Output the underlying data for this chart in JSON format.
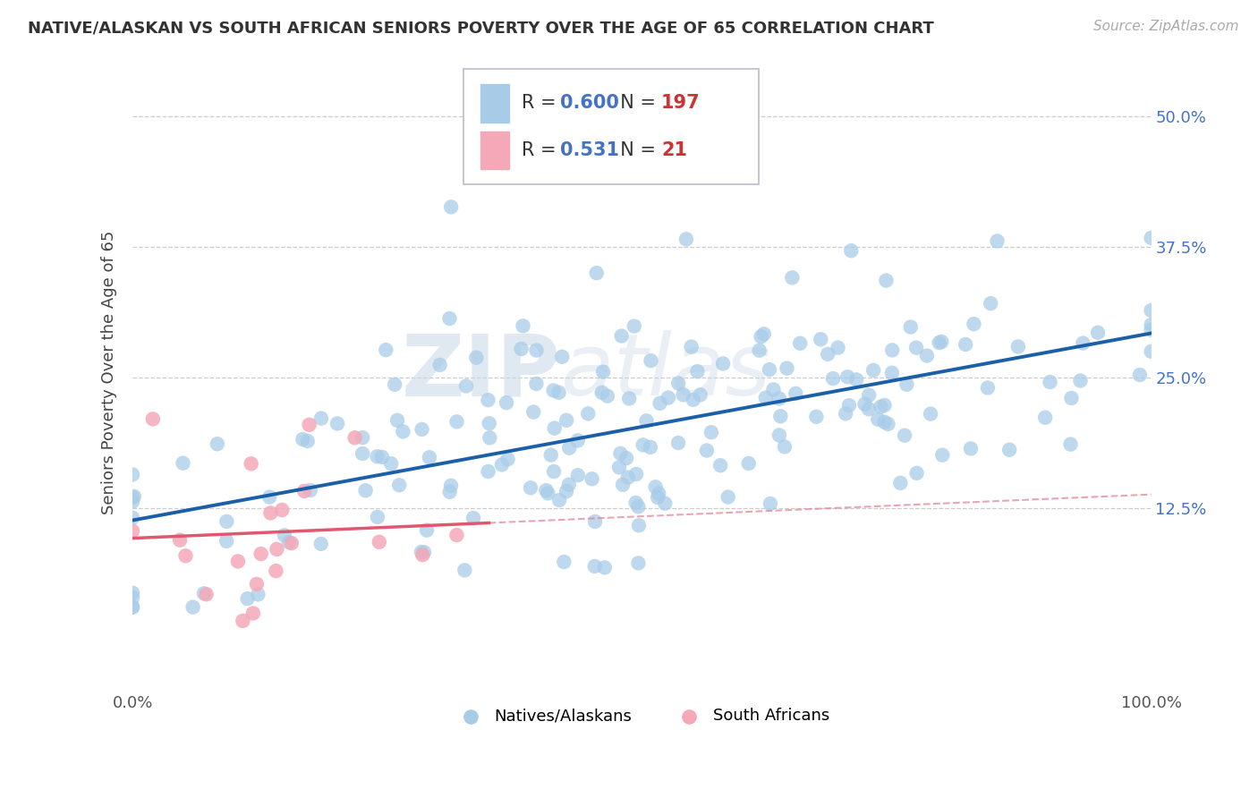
{
  "title": "NATIVE/ALASKAN VS SOUTH AFRICAN SENIORS POVERTY OVER THE AGE OF 65 CORRELATION CHART",
  "source": "Source: ZipAtlas.com",
  "ylabel": "Seniors Poverty Over the Age of 65",
  "xlim": [
    0,
    100
  ],
  "ylim": [
    -5,
    56
  ],
  "ytick_vals": [
    12.5,
    25.0,
    37.5,
    50.0
  ],
  "ytick_labels": [
    "12.5%",
    "25.0%",
    "37.5%",
    "50.0%"
  ],
  "xtick_vals": [
    0,
    100
  ],
  "xtick_labels": [
    "0.0%",
    "100.0%"
  ],
  "blue_color": "#a8cce8",
  "pink_color": "#f4a8b8",
  "blue_line_color": "#1a5fa8",
  "pink_line_color": "#e05870",
  "pink_dash_color": "#e08090",
  "ytick_color": "#4472c4",
  "legend_blue_R": "0.600",
  "legend_blue_N": "197",
  "legend_pink_R": "0.531",
  "legend_pink_N": "21",
  "watermark_zip": "ZIP",
  "watermark_atlas": "atlas",
  "background_color": "#ffffff",
  "blue_N": 197,
  "pink_N": 21,
  "title_fontsize": 13,
  "axis_label_fontsize": 13,
  "tick_fontsize": 13,
  "legend_fontsize": 15,
  "source_fontsize": 11,
  "watermark_fontsize": 70,
  "grid_color": "#cccccc"
}
